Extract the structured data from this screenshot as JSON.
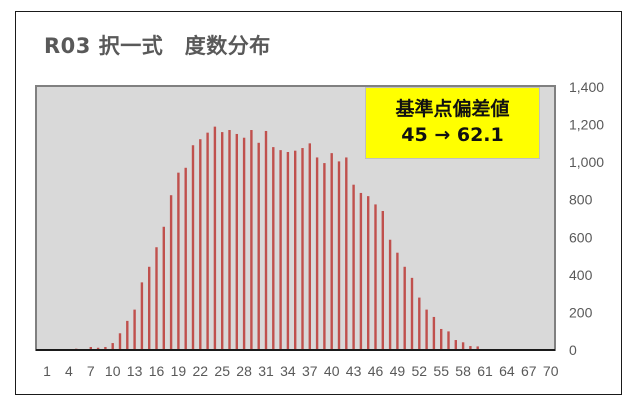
{
  "chart_title": "R03 択一式　度数分布",
  "callout": {
    "line1": "基準点偏差値",
    "line2": "45 → 62.1",
    "background": "#ffff00"
  },
  "colors": {
    "bar": "#c0504d",
    "plot_bg": "#d9d9d9",
    "plot_border": "#808080",
    "text": "#595959"
  },
  "chart_data": {
    "type": "bar",
    "title": "R03 択一式　度数分布",
    "xlabel": "",
    "ylabel": "",
    "ylim": [
      0,
      1400
    ],
    "yticks": [
      0,
      200,
      400,
      600,
      800,
      1000,
      1200,
      1400
    ],
    "ytick_labels": [
      "0",
      "200",
      "400",
      "600",
      "800",
      "1,000",
      "1,200",
      "1,400"
    ],
    "y_axis_position": "right",
    "grid": false,
    "legend": null,
    "xtick_labels": [
      "1",
      "4",
      "7",
      "10",
      "13",
      "16",
      "19",
      "22",
      "25",
      "28",
      "31",
      "34",
      "37",
      "40",
      "43",
      "46",
      "49",
      "52",
      "55",
      "58",
      "61",
      "64",
      "67",
      "70"
    ],
    "categories": [
      1,
      2,
      3,
      4,
      5,
      6,
      7,
      8,
      9,
      10,
      11,
      12,
      13,
      14,
      15,
      16,
      17,
      18,
      19,
      20,
      21,
      22,
      23,
      24,
      25,
      26,
      27,
      28,
      29,
      30,
      31,
      32,
      33,
      34,
      35,
      36,
      37,
      38,
      39,
      40,
      41,
      42,
      43,
      44,
      45,
      46,
      47,
      48,
      49,
      50,
      51,
      52,
      53,
      54,
      55,
      56,
      57,
      58,
      59,
      60,
      61,
      62,
      63,
      64,
      65,
      66,
      67,
      68,
      69,
      70
    ],
    "values": [
      0,
      0,
      0,
      5,
      7,
      5,
      16,
      12,
      16,
      37,
      89,
      155,
      215,
      360,
      443,
      547,
      656,
      824,
      944,
      970,
      1090,
      1122,
      1157,
      1189,
      1160,
      1171,
      1150,
      1130,
      1171,
      1103,
      1166,
      1080,
      1064,
      1054,
      1061,
      1075,
      1100,
      1025,
      995,
      1048,
      1004,
      1025,
      880,
      836,
      819,
      775,
      740,
      587,
      518,
      443,
      384,
      279,
      215,
      176,
      112,
      99,
      53,
      41,
      21,
      19,
      3,
      0,
      0,
      0,
      0,
      0,
      0,
      0,
      0,
      0
    ],
    "annotations": [
      {
        "text": "基準点偏差値\n45 → 62.1",
        "style": "yellow box, top right of plot"
      }
    ]
  }
}
